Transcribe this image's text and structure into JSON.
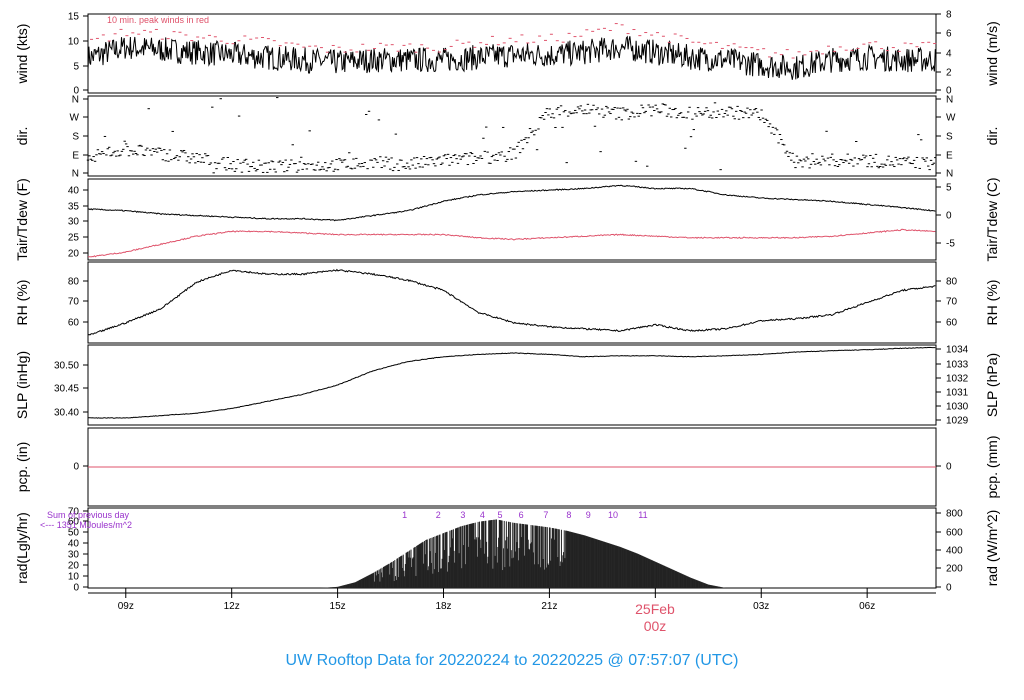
{
  "title": "UW Rooftop Data for 20220224  to  20220225 @ 07:57:07  (UTC)",
  "colors": {
    "axis": "#000000",
    "red": "#df536b",
    "title_blue": "#2297e6",
    "purple": "#9932cc"
  },
  "x_axis": {
    "ticks": [
      "09z",
      "12z",
      "15z",
      "18z",
      "21z",
      "00z",
      "03z",
      "06z"
    ],
    "tick_hours": [
      9,
      12,
      15,
      18,
      21,
      24,
      27,
      30
    ],
    "date_label": "25Feb",
    "date_tick_label": "00z",
    "range_hours": [
      7.93,
      31.95
    ]
  },
  "chart_data": [
    {
      "type": "line",
      "panel": "wind",
      "left_label": "wind (kts)",
      "right_label": "wind (m/s)",
      "annotation": "10 min. peak winds in red",
      "left_ticks": [
        0,
        5,
        10,
        15
      ],
      "right_ticks": [
        0,
        2,
        4,
        6,
        8
      ],
      "ylim": [
        0,
        15.5
      ],
      "x_hours": [
        8,
        9,
        10,
        11,
        12,
        13,
        14,
        15,
        16,
        17,
        18,
        19,
        20,
        21,
        22,
        23,
        24,
        25,
        26,
        27,
        28,
        29,
        30,
        31,
        31.9
      ],
      "series": [
        {
          "values": [
            7,
            9,
            8.5,
            8,
            7.5,
            7,
            6.5,
            6,
            6.5,
            6.5,
            6.5,
            7,
            7.5,
            7.5,
            8,
            9,
            8,
            7,
            6.5,
            5.5,
            5,
            6.5,
            7,
            6.5,
            6.5
          ]
        },
        {
          "values": [
            10,
            12,
            11.5,
            11,
            10.5,
            10,
            9,
            8.5,
            9,
            9,
            9,
            10,
            10.5,
            10.5,
            11.5,
            13,
            11.5,
            10,
            9,
            8,
            7.5,
            9,
            9.5,
            9,
            9
          ]
        }
      ]
    },
    {
      "type": "scatter",
      "panel": "dir",
      "left_label": "dir.",
      "right_label": "dir.",
      "left_ticks": [
        "N",
        "E",
        "S",
        "W",
        "N"
      ],
      "right_ticks": [
        "N",
        "E",
        "S",
        "W",
        "N"
      ],
      "ylim": [
        0,
        360
      ],
      "x_hours": [
        8,
        9,
        10,
        11,
        12,
        13,
        14,
        15,
        16,
        17,
        18,
        19,
        20,
        21,
        22,
        23,
        24,
        25,
        26,
        27,
        28,
        29,
        30,
        31,
        31.9
      ],
      "series": [
        {
          "values": [
            90,
            120,
            100,
            80,
            50,
            40,
            45,
            50,
            60,
            50,
            70,
            80,
            100,
            290,
            300,
            280,
            300,
            280,
            290,
            275,
            60,
            70,
            70,
            60,
            55
          ]
        }
      ]
    },
    {
      "type": "line",
      "panel": "temp",
      "left_label": "Tair/Tdew (F)",
      "right_label": "Tair/Tdew (C)",
      "left_ticks": [
        20,
        25,
        30,
        35,
        40
      ],
      "right_ticks": [
        -5,
        0,
        5
      ],
      "ylim": [
        18.5,
        44
      ],
      "x_hours": [
        8,
        9,
        10,
        11,
        12,
        13,
        14,
        15,
        16,
        17,
        18,
        19,
        20,
        21,
        22,
        23,
        24,
        25,
        26,
        27,
        28,
        29,
        30,
        31,
        31.9
      ],
      "series": [
        {
          "values": [
            34.5,
            34,
            33,
            32.5,
            32,
            31.5,
            31.5,
            31,
            32.5,
            34,
            37,
            39,
            40,
            40.5,
            41,
            42,
            41,
            41,
            39,
            38,
            37.5,
            37,
            36,
            35,
            34
          ]
        },
        {
          "values": [
            19.5,
            21,
            23.5,
            26,
            27.5,
            27.5,
            27,
            26.5,
            26.5,
            26.5,
            26.5,
            25.5,
            25,
            25.5,
            26,
            26.5,
            26,
            25.5,
            25.5,
            25.5,
            25.5,
            26,
            27,
            28,
            27.5
          ]
        }
      ]
    },
    {
      "type": "line",
      "panel": "rh",
      "left_label": "RH (%)",
      "right_label": "RH (%)",
      "left_ticks": [
        60,
        70,
        80
      ],
      "right_ticks": [
        60,
        70,
        80
      ],
      "ylim": [
        50,
        90
      ],
      "x_hours": [
        8,
        9,
        10,
        11,
        12,
        13,
        14,
        15,
        16,
        17,
        18,
        19,
        20,
        21,
        22,
        23,
        24,
        25,
        26,
        27,
        28,
        29,
        30,
        31,
        31.9
      ],
      "series": [
        {
          "values": [
            54,
            60,
            67,
            80,
            86,
            84,
            84,
            86,
            84,
            81,
            76,
            65,
            60,
            58,
            57,
            56,
            59,
            56,
            57,
            61,
            62,
            64,
            70,
            76,
            78
          ]
        }
      ]
    },
    {
      "type": "line",
      "panel": "slp",
      "left_label": "SLP (inHg)",
      "right_label": "SLP (hPa)",
      "left_ticks": [
        "30.40",
        "30.45",
        "30.50"
      ],
      "right_ticks": [
        1029,
        1030,
        1031,
        1032,
        1033,
        1034
      ],
      "ylim": [
        30.375,
        30.545
      ],
      "x_hours": [
        8,
        9,
        10,
        11,
        12,
        13,
        14,
        15,
        16,
        17,
        18,
        19,
        20,
        21,
        22,
        23,
        24,
        25,
        26,
        27,
        28,
        29,
        30,
        31,
        31.9
      ],
      "series": [
        {
          "values": [
            30.39,
            30.39,
            30.395,
            30.4,
            30.41,
            30.425,
            30.44,
            30.46,
            30.49,
            30.51,
            30.52,
            30.525,
            30.528,
            30.525,
            30.52,
            30.522,
            30.522,
            30.52,
            30.522,
            30.525,
            30.53,
            30.533,
            30.535,
            30.538,
            30.54
          ]
        }
      ]
    },
    {
      "type": "line",
      "panel": "pcp",
      "left_label": "pcp. (in)",
      "right_label": "pcp. (mm)",
      "left_ticks": [
        0
      ],
      "right_ticks": [
        0
      ],
      "ylim": [
        -1,
        1
      ],
      "x_hours": [
        7.93,
        31.95
      ],
      "series": [
        {
          "values": [
            0,
            0
          ]
        }
      ]
    },
    {
      "type": "area",
      "panel": "rad",
      "left_label": "rad(Lgly/hr)",
      "right_label": "rad (W/m^2)",
      "left_ticks": [
        0,
        10,
        20,
        30,
        40,
        50,
        60,
        70
      ],
      "right_ticks": [
        0,
        200,
        400,
        600,
        800
      ],
      "ylim": [
        0,
        70
      ],
      "annotation_lines": [
        "Sum of previous day",
        "<--- 1351 MJoules/m^2"
      ],
      "hour_labels": [
        "1",
        "2",
        "3",
        "4",
        "5",
        "6",
        "7",
        "8",
        "9",
        "10",
        "11"
      ],
      "hour_label_x": [
        16.9,
        17.85,
        18.55,
        19.1,
        19.6,
        20.2,
        20.9,
        21.55,
        22.1,
        22.8,
        23.65
      ],
      "x_hours": [
        14.5,
        15,
        15.5,
        16,
        16.5,
        17,
        17.5,
        18,
        18.5,
        19,
        19.5,
        20,
        20.5,
        21,
        21.5,
        22,
        22.5,
        23,
        23.5,
        24,
        24.5,
        25,
        25.5,
        26
      ],
      "series": [
        {
          "values": [
            0,
            1,
            5,
            13,
            22,
            32,
            42,
            48,
            54,
            58,
            60,
            57,
            55,
            53,
            50,
            46,
            41,
            36,
            30,
            23,
            16,
            9,
            3,
            0
          ]
        }
      ]
    }
  ]
}
